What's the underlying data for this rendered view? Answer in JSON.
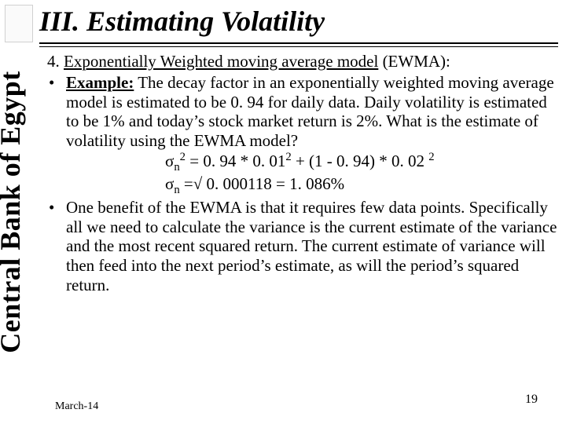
{
  "org_label": "Central Bank of Egypt",
  "logo_placeholder": "logo",
  "title": "III. Estimating Volatility",
  "heading_prefix": "4. ",
  "heading_underlined": "Exponentially Weighted moving average model",
  "heading_suffix": " (EWMA):",
  "bullets": {
    "b1_lead": "Example:",
    "b1_rest": " The decay factor in an exponentially weighted moving average model is estimated to be 0. 94 for daily data. Daily volatility is estimated to be 1% and today’s stock market return is 2%. What is the estimate of volatility using the EWMA model?",
    "b2": "One benefit of the EWMA is that it requires few data points. Specifically all we need to calculate the variance is the current estimate of the variance and the most recent squared return. The current estimate of variance will then feed into the next period’s estimate, as will the period’s squared return."
  },
  "formulas": {
    "f1_a": "σ",
    "f1_sub": "n",
    "f1_sup": "2",
    "f1_b": " = 0. 94 * 0. 01",
    "f1_sup2": "2",
    "f1_c": " + (1 - 0. 94) * 0. 02 ",
    "f1_sup3": "2",
    "f2_a": "σ",
    "f2_sub": "n",
    "f2_b": " =√ 0. 000118 = 1. 086%"
  },
  "footer": {
    "date": "March-14",
    "page": "19"
  },
  "colors": {
    "text": "#000000",
    "bg": "#ffffff",
    "rule": "#000000"
  },
  "fonts": {
    "family": "Times New Roman",
    "title_size_pt": 27,
    "body_size_pt": 16
  }
}
